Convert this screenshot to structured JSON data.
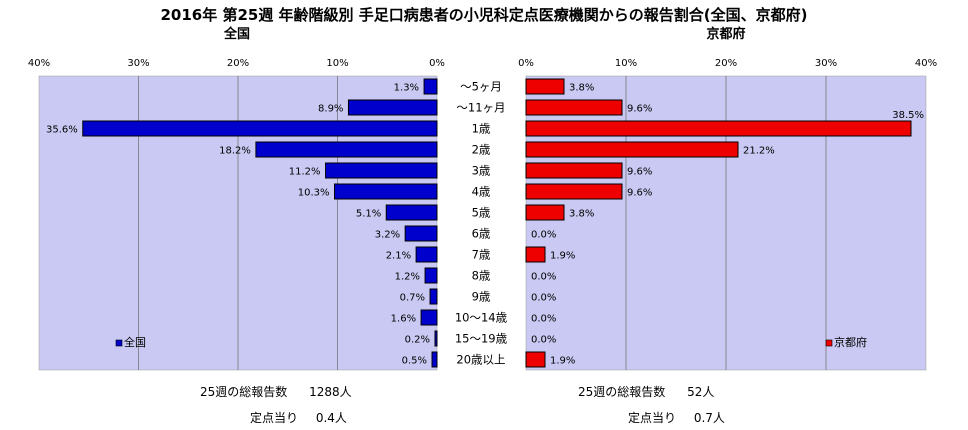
{
  "title": "2016年 第25週 年齢階級別 手足口病患者の小児科定点医療機関からの報告割合(全国、京都府)",
  "colors": {
    "plot_bg": "#c9c9f3",
    "national": "#0000cc",
    "kyoto": "#ee0000",
    "grid": "#777777"
  },
  "chart_data": [
    {
      "type": "bar",
      "orientation": "horizontal",
      "direction": "right-to-left",
      "title": "全国",
      "categories": [
        "～5ヶ月",
        "～11ヶ月",
        "1歳",
        "2歳",
        "3歳",
        "4歳",
        "5歳",
        "6歳",
        "7歳",
        "8歳",
        "9歳",
        "10～14歳",
        "15～19歳",
        "20歳以上"
      ],
      "series": [
        {
          "name": "全国",
          "values": [
            1.3,
            8.9,
            35.6,
            18.2,
            11.2,
            10.3,
            5.1,
            3.2,
            2.1,
            1.2,
            0.7,
            1.6,
            0.2,
            0.5
          ]
        }
      ],
      "value_labels": [
        "1.3%",
        "8.9%",
        "35.6%",
        "18.2%",
        "11.2%",
        "10.3%",
        "5.1%",
        "3.2%",
        "2.1%",
        "1.2%",
        "0.7%",
        "1.6%",
        "0.2%",
        "0.5%"
      ],
      "xlim": [
        0,
        40
      ],
      "ticks": [
        "40%",
        "30%",
        "20%",
        "10%",
        "0%"
      ],
      "grid": true,
      "legend": "bottom-left"
    },
    {
      "type": "bar",
      "orientation": "horizontal",
      "direction": "left-to-right",
      "title": "京都府",
      "categories": [
        "～5ヶ月",
        "～11ヶ月",
        "1歳",
        "2歳",
        "3歳",
        "4歳",
        "5歳",
        "6歳",
        "7歳",
        "8歳",
        "9歳",
        "10～14歳",
        "15～19歳",
        "20歳以上"
      ],
      "series": [
        {
          "name": "京都府",
          "values": [
            3.8,
            9.6,
            38.5,
            21.2,
            9.6,
            9.6,
            3.8,
            0.0,
            1.9,
            0.0,
            0.0,
            0.0,
            0.0,
            1.9
          ]
        }
      ],
      "value_labels": [
        "3.8%",
        "9.6%",
        "38.5%",
        "21.2%",
        "9.6%",
        "9.6%",
        "3.8%",
        "0.0%",
        "1.9%",
        "0.0%",
        "0.0%",
        "0.0%",
        "0.0%",
        "1.9%"
      ],
      "xlim": [
        0,
        40
      ],
      "ticks": [
        "0%",
        "10%",
        "20%",
        "30%",
        "40%"
      ],
      "grid": true,
      "legend": "bottom-right"
    }
  ],
  "stats": {
    "national": {
      "total_label": "25週の総報告数",
      "total_value": "1288人",
      "per_label": "定点当り",
      "per_value": "0.4人"
    },
    "kyoto": {
      "total_label": "25週の総報告数",
      "total_value": "52人",
      "per_label": "定点当り",
      "per_value": "0.7人"
    }
  }
}
